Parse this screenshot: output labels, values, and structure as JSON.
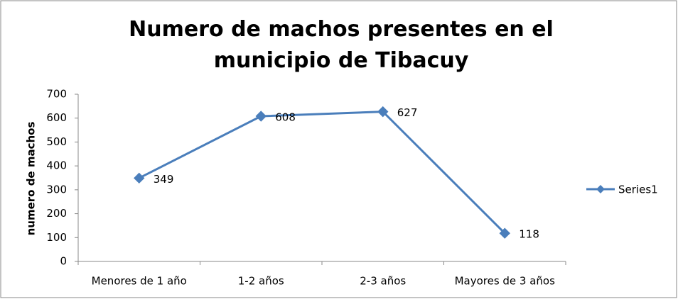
{
  "chart_data": {
    "type": "line",
    "title": "Numero de machos presentes en el municipio de Tibacuy",
    "y_label": "numero de machos",
    "categories": [
      "Menores de 1 año",
      "1-2 años",
      "2-3 años",
      "Mayores de  3 años"
    ],
    "series": [
      {
        "name": "Series1",
        "color": "#4a7ebb",
        "values": [
          349,
          608,
          627,
          118
        ]
      }
    ],
    "ylim": [
      0,
      700
    ],
    "yticks": [
      0,
      100,
      200,
      300,
      400,
      500,
      600,
      700
    ],
    "grid": false,
    "legend": "right",
    "data_labels": true
  }
}
